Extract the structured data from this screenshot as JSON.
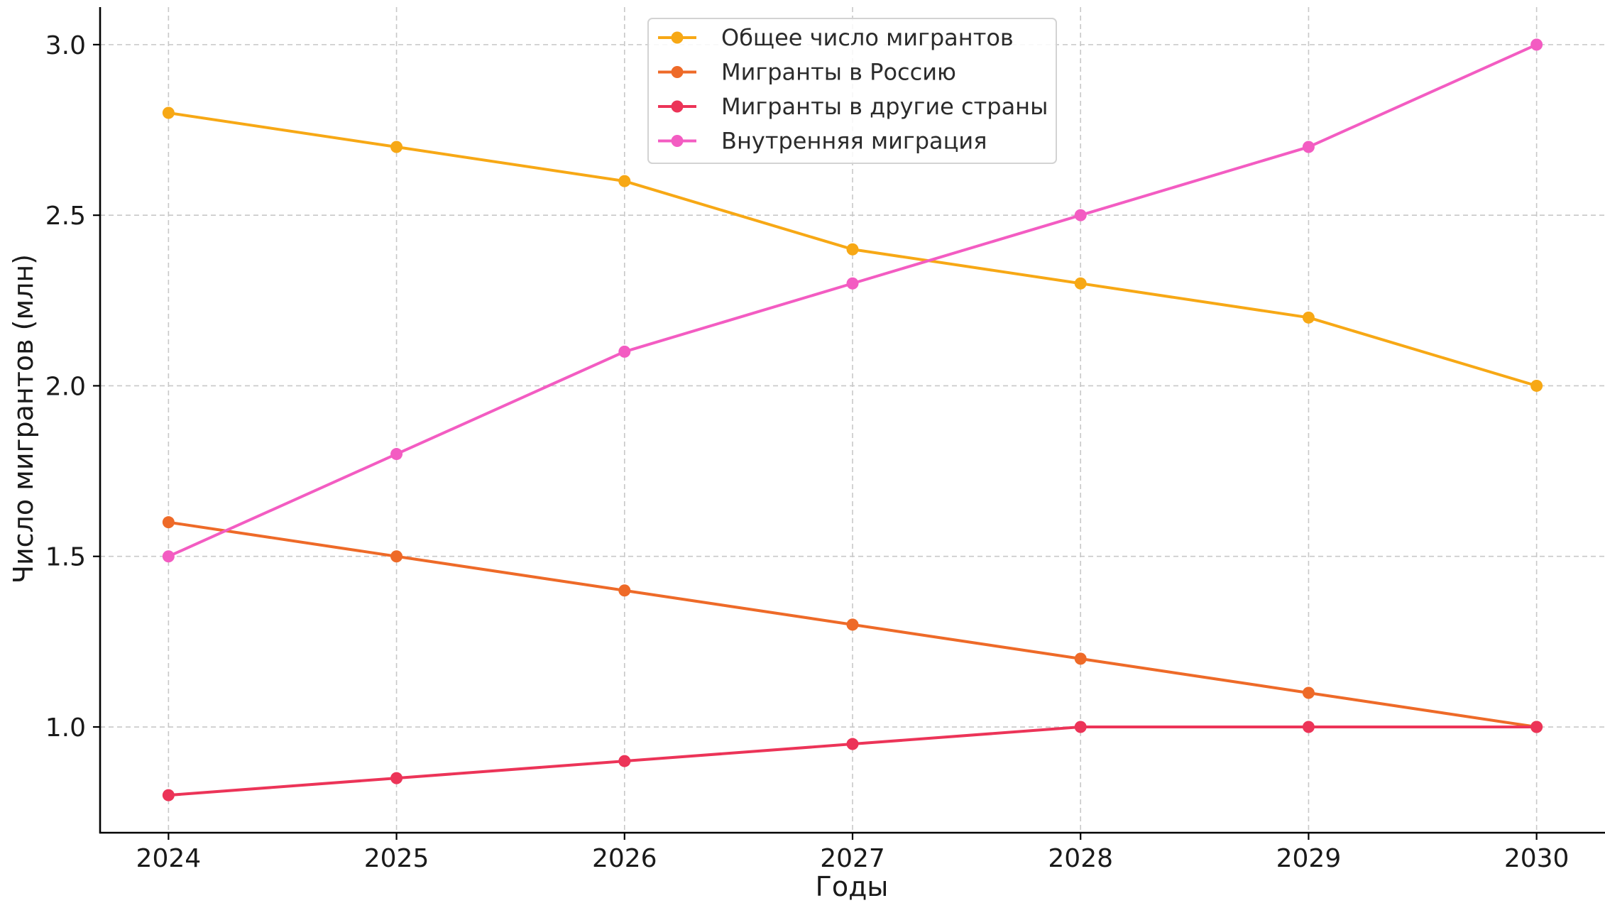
{
  "chart_data": {
    "type": "line",
    "title": "",
    "xlabel": "Годы",
    "ylabel": "Число мигрантов (млн)",
    "x": [
      2024,
      2025,
      2026,
      2027,
      2028,
      2029,
      2030
    ],
    "x_tick_labels": [
      "2024",
      "2025",
      "2026",
      "2027",
      "2028",
      "2029",
      "2030"
    ],
    "y_ticks": [
      1.0,
      1.5,
      2.0,
      2.5,
      3.0
    ],
    "y_tick_labels": [
      "1.0",
      "1.5",
      "2.0",
      "2.5",
      "3.0"
    ],
    "xlim": [
      2023.7,
      2030.3
    ],
    "ylim": [
      0.69,
      3.11
    ],
    "grid": true,
    "legend_position": "top-center",
    "series": [
      {
        "name": "Общее число мигрантов",
        "color": "#F7A815",
        "values": [
          2.8,
          2.7,
          2.6,
          2.4,
          2.3,
          2.2,
          2.0
        ]
      },
      {
        "name": "Мигранты в Россию",
        "color": "#EE6A28",
        "values": [
          1.6,
          1.5,
          1.4,
          1.3,
          1.2,
          1.1,
          1.0
        ]
      },
      {
        "name": "Мигранты в другие страны",
        "color": "#EC3458",
        "values": [
          0.8,
          0.85,
          0.9,
          0.95,
          1.0,
          1.0,
          1.0
        ]
      },
      {
        "name": "Внутренняя миграция",
        "color": "#F35CC2",
        "values": [
          1.5,
          1.8,
          2.1,
          2.3,
          2.5,
          2.7,
          3.0
        ]
      }
    ]
  }
}
